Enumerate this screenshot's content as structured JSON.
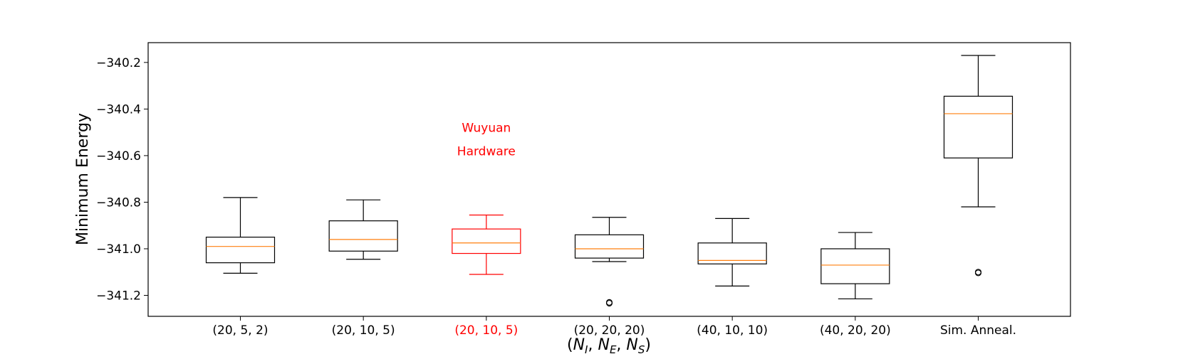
{
  "chart_data": {
    "type": "box",
    "categories": [
      "(20, 5, 2)",
      "(20, 10, 5)",
      "(20, 10, 5)",
      "(20, 20, 20)",
      "(40, 10, 10)",
      "(40, 20, 20)",
      "Sim. Anneal."
    ],
    "highlight_index": 2,
    "highlight_color": "#ff0000",
    "box_color": "#000000",
    "median_color": "#ff7f0e",
    "boxes": [
      {
        "whisker_low": -341.105,
        "q1": -341.06,
        "median": -340.99,
        "q3": -340.95,
        "whisker_high": -340.78,
        "outliers": []
      },
      {
        "whisker_low": -341.045,
        "q1": -341.01,
        "median": -340.96,
        "q3": -340.88,
        "whisker_high": -340.79,
        "outliers": []
      },
      {
        "whisker_low": -341.11,
        "q1": -341.02,
        "median": -340.975,
        "q3": -340.915,
        "whisker_high": -340.855,
        "outliers": []
      },
      {
        "whisker_low": -341.055,
        "q1": -341.04,
        "median": -341.0,
        "q3": -340.94,
        "whisker_high": -340.865,
        "outliers": [
          -341.23
        ]
      },
      {
        "whisker_low": -341.16,
        "q1": -341.065,
        "median": -341.05,
        "q3": -340.975,
        "whisker_high": -340.87,
        "outliers": []
      },
      {
        "whisker_low": -341.215,
        "q1": -341.15,
        "median": -341.07,
        "q3": -341.0,
        "whisker_high": -340.93,
        "outliers": []
      },
      {
        "whisker_low": -340.82,
        "q1": -340.61,
        "median": -340.42,
        "q3": -340.345,
        "whisker_high": -340.17,
        "outliers": [
          -341.1
        ]
      }
    ],
    "ylim": [
      -341.29,
      -340.115
    ],
    "yticks": [
      -340.2,
      -340.4,
      -340.6,
      -340.8,
      -341.0,
      -341.2
    ],
    "ytick_labels": [
      "−340.2",
      "−340.4",
      "−340.6",
      "−340.8",
      "−341.0",
      "−341.2"
    ],
    "ylabel": "Minimum Energy",
    "xlabel": "(N_I, N_E, N_S)",
    "xlabel_parts": {
      "open": "(",
      "n": "N",
      "sub_i": "I",
      "sep": ", ",
      "sub_e": "E",
      "sub_s": "S",
      "close": ")"
    },
    "annotation": {
      "lines": [
        "Wuyuan",
        "Hardware"
      ],
      "color": "#ff0000",
      "category_index": 2,
      "y_values": [
        -340.48,
        -340.58
      ]
    }
  }
}
